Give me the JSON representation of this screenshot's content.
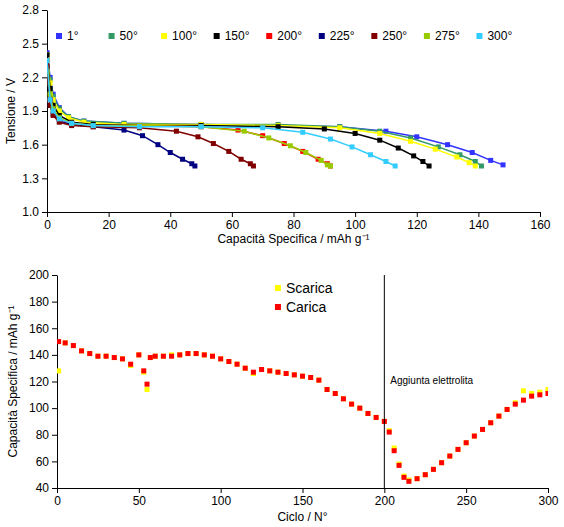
{
  "chart_data": [
    {
      "type": "line",
      "x_label": "Capacità Specifica / mAh g⁻¹",
      "y_label": "Tensione / V",
      "xlim": [
        0,
        160
      ],
      "xticks": [
        0,
        20,
        40,
        60,
        80,
        100,
        120,
        140,
        160
      ],
      "ylim": [
        1,
        2.8
      ],
      "yticks": [
        {
          "value": 1,
          "label": "1.0"
        },
        1.3,
        1.6,
        1.9,
        2.2,
        2.5,
        2.8
      ],
      "legend": "top",
      "marker": "square",
      "line_style": "solid",
      "series": [
        {
          "name": "1°",
          "color": "#3333ff",
          "x": [
            0,
            1,
            2,
            4,
            7,
            12,
            25,
            50,
            75,
            95,
            110,
            120,
            130,
            138,
            144,
            148
          ],
          "values": [
            2.42,
            2.2,
            2.05,
            1.93,
            1.85,
            1.81,
            1.79,
            1.78,
            1.77,
            1.76,
            1.72,
            1.67,
            1.6,
            1.53,
            1.46,
            1.42
          ]
        },
        {
          "name": "50°",
          "color": "#339966",
          "x": [
            0,
            1,
            2,
            4,
            7,
            12,
            25,
            50,
            75,
            95,
            108,
            118,
            127,
            134,
            139,
            141
          ],
          "values": [
            2.4,
            2.18,
            2.03,
            1.92,
            1.85,
            1.81,
            1.79,
            1.78,
            1.78,
            1.76,
            1.72,
            1.66,
            1.58,
            1.51,
            1.45,
            1.41
          ]
        },
        {
          "name": "100°",
          "color": "#ffff00",
          "x": [
            0,
            1,
            2,
            4,
            7,
            12,
            25,
            50,
            75,
            95,
            108,
            118,
            126,
            133,
            137,
            139
          ],
          "values": [
            2.4,
            2.15,
            2.0,
            1.9,
            1.84,
            1.8,
            1.78,
            1.78,
            1.77,
            1.75,
            1.7,
            1.63,
            1.56,
            1.49,
            1.44,
            1.41
          ]
        },
        {
          "name": "150°",
          "color": "#000000",
          "x": [
            0,
            1,
            2,
            4,
            8,
            15,
            30,
            50,
            75,
            90,
            100,
            108,
            114,
            119,
            122,
            124
          ],
          "values": [
            2.4,
            2.1,
            1.95,
            1.86,
            1.8,
            1.78,
            1.77,
            1.77,
            1.76,
            1.74,
            1.7,
            1.64,
            1.57,
            1.5,
            1.45,
            1.41
          ]
        },
        {
          "name": "200°",
          "color": "#ff0000",
          "x": [
            0,
            1,
            2,
            4,
            8,
            15,
            30,
            50,
            62,
            70,
            77,
            83,
            88,
            91,
            92
          ],
          "values": [
            2.35,
            2.0,
            1.9,
            1.83,
            1.79,
            1.77,
            1.77,
            1.76,
            1.73,
            1.68,
            1.61,
            1.54,
            1.47,
            1.43,
            1.41
          ]
        },
        {
          "name": "225°",
          "color": "#000080",
          "x": [
            0,
            1,
            2,
            4,
            8,
            15,
            25,
            31,
            36,
            40,
            44,
            47,
            48
          ],
          "values": [
            2.3,
            1.95,
            1.87,
            1.81,
            1.78,
            1.76,
            1.73,
            1.68,
            1.6,
            1.53,
            1.47,
            1.43,
            1.41
          ]
        },
        {
          "name": "250°",
          "color": "#800000",
          "x": [
            0,
            1,
            2,
            4,
            8,
            15,
            30,
            42,
            49,
            54,
            59,
            63,
            66,
            67
          ],
          "values": [
            2.3,
            1.95,
            1.86,
            1.8,
            1.77,
            1.76,
            1.75,
            1.72,
            1.67,
            1.61,
            1.54,
            1.47,
            1.43,
            1.41
          ]
        },
        {
          "name": "275°",
          "color": "#99cc00",
          "x": [
            0,
            1,
            2,
            4,
            8,
            15,
            30,
            50,
            64,
            72,
            79,
            84,
            89,
            91,
            92
          ],
          "values": [
            2.35,
            2.05,
            1.92,
            1.84,
            1.79,
            1.77,
            1.77,
            1.76,
            1.72,
            1.66,
            1.59,
            1.53,
            1.46,
            1.42,
            1.41
          ]
        },
        {
          "name": "300°",
          "color": "#33ccff",
          "x": [
            0,
            1,
            2,
            4,
            8,
            15,
            30,
            50,
            70,
            83,
            92,
            99,
            105,
            110,
            113
          ],
          "values": [
            2.35,
            2.0,
            1.9,
            1.83,
            1.79,
            1.77,
            1.76,
            1.76,
            1.75,
            1.71,
            1.65,
            1.58,
            1.51,
            1.45,
            1.41
          ]
        }
      ]
    },
    {
      "type": "scatter",
      "x_label": "Ciclo / N°",
      "y_label": "Capacità Specifica / mAh g⁻¹",
      "xlim": [
        0,
        300
      ],
      "xticks": [
        0,
        50,
        100,
        150,
        200,
        250,
        300
      ],
      "ylim": [
        40,
        200
      ],
      "yticks": [
        40,
        60,
        80,
        100,
        120,
        140,
        160,
        180,
        200
      ],
      "legend": "center",
      "marker": "square",
      "line_style": "none",
      "annotations": [
        {
          "x": 200,
          "text": "Aggiunta elettrolita"
        }
      ],
      "x": [
        1,
        5,
        10,
        15,
        20,
        25,
        30,
        35,
        40,
        45,
        50,
        53,
        55,
        57,
        60,
        65,
        70,
        75,
        80,
        85,
        90,
        95,
        100,
        105,
        110,
        115,
        120,
        125,
        130,
        135,
        140,
        145,
        150,
        155,
        160,
        165,
        170,
        175,
        180,
        185,
        190,
        195,
        200,
        203,
        206,
        209,
        212,
        215,
        220,
        225,
        230,
        235,
        240,
        245,
        250,
        255,
        260,
        265,
        270,
        275,
        280,
        285,
        290,
        295,
        300
      ],
      "series": [
        {
          "name": "Scarica",
          "color": "#ffff00",
          "values": [
            128,
            149,
            147,
            143,
            141,
            139,
            139,
            138,
            137,
            132,
            140,
            127,
            114,
            138,
            139,
            139,
            140,
            140,
            141,
            141,
            140,
            139,
            137,
            135,
            133,
            130,
            126,
            129,
            128,
            127,
            126,
            125,
            124,
            123,
            121,
            114,
            111,
            107,
            103,
            100,
            96,
            93,
            90,
            83,
            70,
            58,
            49,
            46,
            47,
            50,
            54,
            59,
            64,
            69,
            74,
            79,
            84,
            89,
            94,
            99,
            104,
            113,
            111,
            112,
            114
          ]
        },
        {
          "name": "Carica",
          "color": "#ff0000",
          "values": [
            150,
            149,
            147,
            143,
            141,
            139,
            139,
            138,
            137,
            133,
            140,
            128,
            118,
            138,
            139,
            139,
            139,
            140,
            141,
            141,
            140,
            139,
            137,
            135,
            133,
            130,
            127,
            129,
            128,
            127,
            126,
            125,
            124,
            123,
            121,
            114,
            111,
            107,
            103,
            100,
            96,
            93,
            90,
            82,
            68,
            57,
            48,
            45,
            47,
            50,
            54,
            59,
            64,
            69,
            74,
            79,
            84,
            89,
            94,
            99,
            103,
            106,
            109,
            110,
            111
          ]
        }
      ]
    }
  ]
}
